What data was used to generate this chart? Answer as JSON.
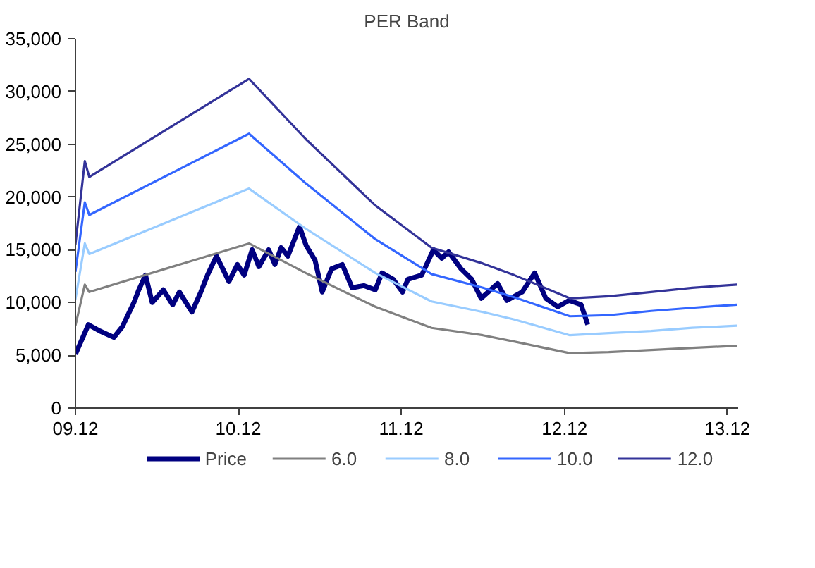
{
  "chart_data": {
    "type": "line",
    "title": "PER Band",
    "x": [
      "2009-12-01",
      "2009-12-30",
      "2010-01-25",
      "2010-02-25",
      "2010-03-16",
      "2010-04-11",
      "2010-04-22",
      "2010-05-07",
      "2010-05-22",
      "2010-06-16",
      "2010-07-07",
      "2010-07-22",
      "2010-08-19",
      "2010-09-08",
      "2010-09-23",
      "2010-10-13",
      "2010-11-10",
      "2010-11-29",
      "2010-12-14",
      "2011-01-01",
      "2011-01-16",
      "2011-02-07",
      "2011-02-21",
      "2011-03-07",
      "2011-03-22",
      "2011-04-17",
      "2011-05-02",
      "2011-05-22",
      "2011-06-07",
      "2011-06-28",
      "2011-07-22",
      "2011-08-13",
      "2011-09-08",
      "2011-10-04",
      "2011-10-19",
      "2011-11-13",
      "2011-12-04",
      "2011-12-16",
      "2012-01-16",
      "2012-02-11",
      "2012-03-01",
      "2012-03-16",
      "2012-04-13",
      "2012-05-07",
      "2012-05-28",
      "2012-07-04",
      "2012-07-25",
      "2012-08-28",
      "2012-09-25",
      "2012-10-20",
      "2012-11-16",
      "2012-12-11",
      "2013-01-07",
      "2013-01-22"
    ],
    "series": [
      {
        "name": "Price",
        "color": "#000080",
        "values": [
          5100,
          7900,
          7300,
          6700,
          7700,
          10000,
          11200,
          12600,
          10000,
          11200,
          9800,
          11000,
          9100,
          11000,
          12600,
          14400,
          12000,
          13600,
          12600,
          15000,
          13400,
          15000,
          13600,
          15200,
          14400,
          17200,
          15400,
          14000,
          11000,
          13200,
          13600,
          11400,
          11600,
          11200,
          12800,
          12200,
          11000,
          12200,
          12600,
          15000,
          14200,
          14800,
          13200,
          12200,
          10400,
          11800,
          10200,
          11000,
          12800,
          10400,
          9600,
          10200,
          9800,
          7900
        ]
      },
      {
        "name": "6.0",
        "color": "#808080",
        "x": [
          "2009-12-01",
          "2009-12-22",
          "2010-01-01",
          "2010-12-25",
          "2011-05-01",
          "2011-10-04",
          "2012-02-07",
          "2012-06-01",
          "2012-08-10",
          "2012-12-13",
          "2013-03-10",
          "2013-06-13",
          "2013-09-13",
          "2013-12-22"
        ],
        "values": [
          7800,
          11700,
          11000,
          15600,
          12800,
          9600,
          7600,
          6900,
          6300,
          5200,
          5300,
          5500,
          5700,
          5900
        ]
      },
      {
        "name": "8.0",
        "color": "#99ccff",
        "x": [
          "2009-12-01",
          "2009-12-22",
          "2010-01-01",
          "2010-12-25",
          "2011-05-01",
          "2011-10-04",
          "2012-02-07",
          "2012-06-01",
          "2012-08-10",
          "2012-12-13",
          "2013-03-10",
          "2013-06-13",
          "2013-09-13",
          "2013-12-22"
        ],
        "values": [
          10300,
          15600,
          14600,
          20800,
          17000,
          12800,
          10100,
          9100,
          8400,
          6900,
          7100,
          7300,
          7600,
          7800
        ]
      },
      {
        "name": "10.0",
        "color": "#3366ff",
        "x": [
          "2009-12-01",
          "2009-12-22",
          "2010-01-01",
          "2010-12-25",
          "2011-05-01",
          "2011-10-04",
          "2012-02-07",
          "2012-06-01",
          "2012-08-10",
          "2012-12-13",
          "2013-03-10",
          "2013-06-13",
          "2013-09-13",
          "2013-12-22"
        ],
        "values": [
          12900,
          19500,
          18300,
          26000,
          21300,
          16000,
          12700,
          11400,
          10500,
          8700,
          8800,
          9200,
          9500,
          9800
        ]
      },
      {
        "name": "12.0",
        "color": "#333399",
        "x": [
          "2009-12-01",
          "2009-12-22",
          "2010-01-01",
          "2010-12-25",
          "2011-05-01",
          "2011-10-04",
          "2012-02-07",
          "2012-06-01",
          "2012-08-10",
          "2012-12-13",
          "2013-03-10",
          "2013-06-13",
          "2013-09-13",
          "2013-12-22"
        ],
        "values": [
          15500,
          23400,
          21900,
          31200,
          25500,
          19200,
          15200,
          13700,
          12600,
          10400,
          10600,
          11000,
          11400,
          11700
        ]
      }
    ],
    "xlim": [
      "2009-12-01",
      "2013-12-25"
    ],
    "xticks": [
      {
        "value": "2009-12",
        "label": "09.12"
      },
      {
        "value": "2010-12",
        "label": "10.12"
      },
      {
        "value": "2011-12",
        "label": "11.12"
      },
      {
        "value": "2012-12",
        "label": "12.12"
      },
      {
        "value": "2013-12",
        "label": "13.12"
      }
    ],
    "ylim": [
      0,
      35000
    ],
    "yticks": [
      0,
      {
        "value": 5000,
        "label": "5,000"
      },
      {
        "value": 10000,
        "label": "10,000"
      },
      {
        "value": 15000,
        "label": "15,000"
      },
      {
        "value": 20000,
        "label": "20,000"
      },
      {
        "value": 25000,
        "label": "25,000"
      },
      {
        "value": 30000,
        "label": "30,000"
      },
      {
        "value": 35000,
        "label": "35,000"
      }
    ],
    "legend": "bottom",
    "line_style": "solid"
  }
}
